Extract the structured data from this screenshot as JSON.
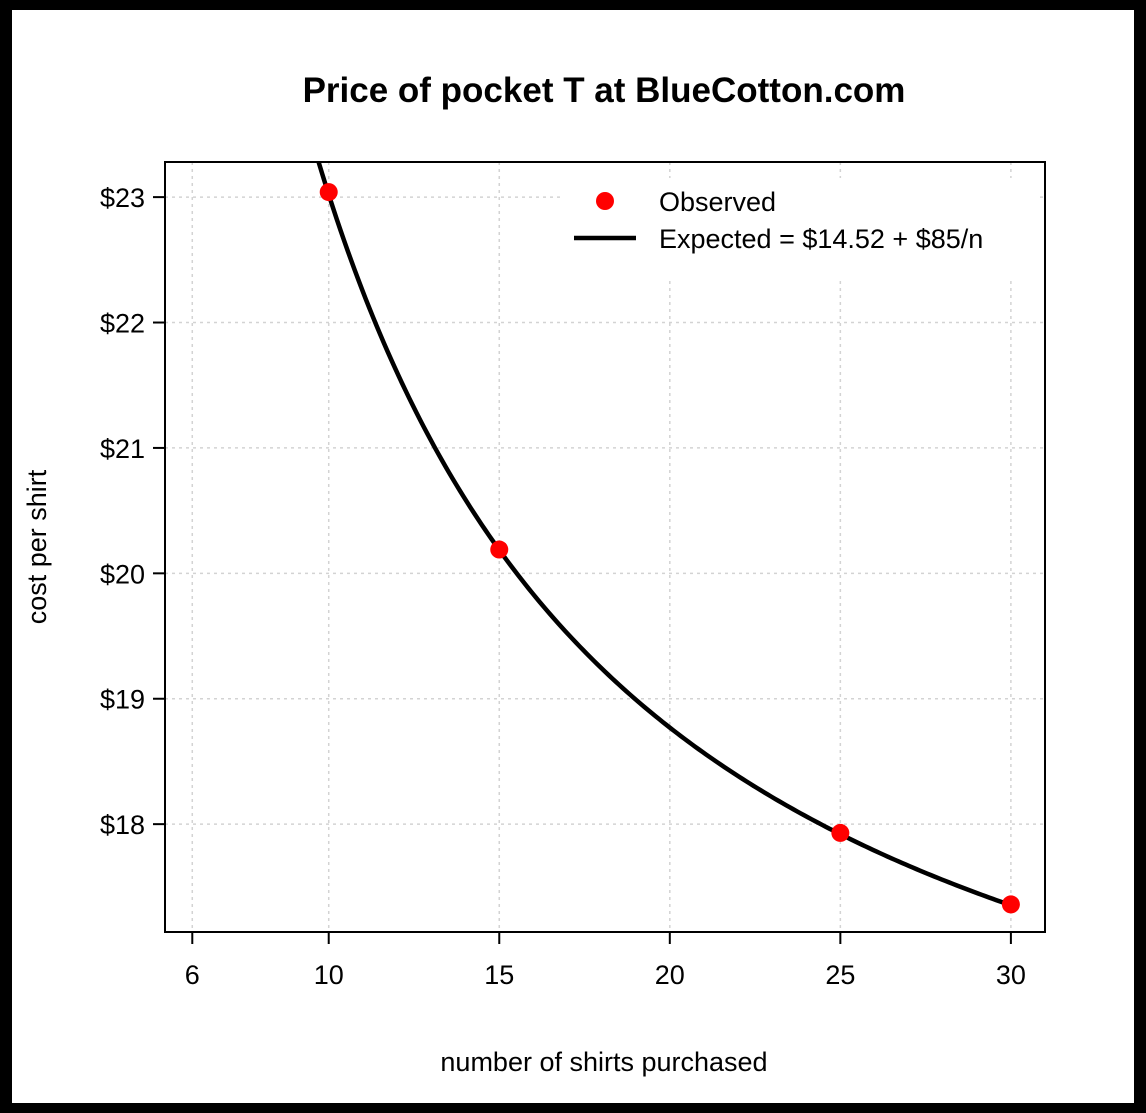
{
  "chart_data": {
    "type": "scatter",
    "title": "Price of pocket T at BlueCotton.com",
    "xlabel": "number of shirts purchased",
    "ylabel": "cost per shirt",
    "xlim": [
      5.2,
      31
    ],
    "ylim": [
      17.14,
      23.28
    ],
    "x_ticks": [
      6,
      10,
      15,
      20,
      25,
      30
    ],
    "y_ticks": [
      18,
      19,
      20,
      21,
      22,
      23
    ],
    "y_tick_labels": [
      "$18",
      "$19",
      "$20",
      "$21",
      "$22",
      "$23"
    ],
    "grid": true,
    "series": [
      {
        "name": "Observed",
        "kind": "points",
        "color": "#ff0000",
        "x": [
          10,
          15,
          25,
          30
        ],
        "y": [
          23.04,
          20.19,
          17.93,
          17.36
        ]
      },
      {
        "name": "Expected = $14.52 + $85/n",
        "kind": "line",
        "color": "#000000",
        "intercept": 14.52,
        "coefficient": 85
      }
    ],
    "legend": {
      "position": "top-right"
    }
  }
}
